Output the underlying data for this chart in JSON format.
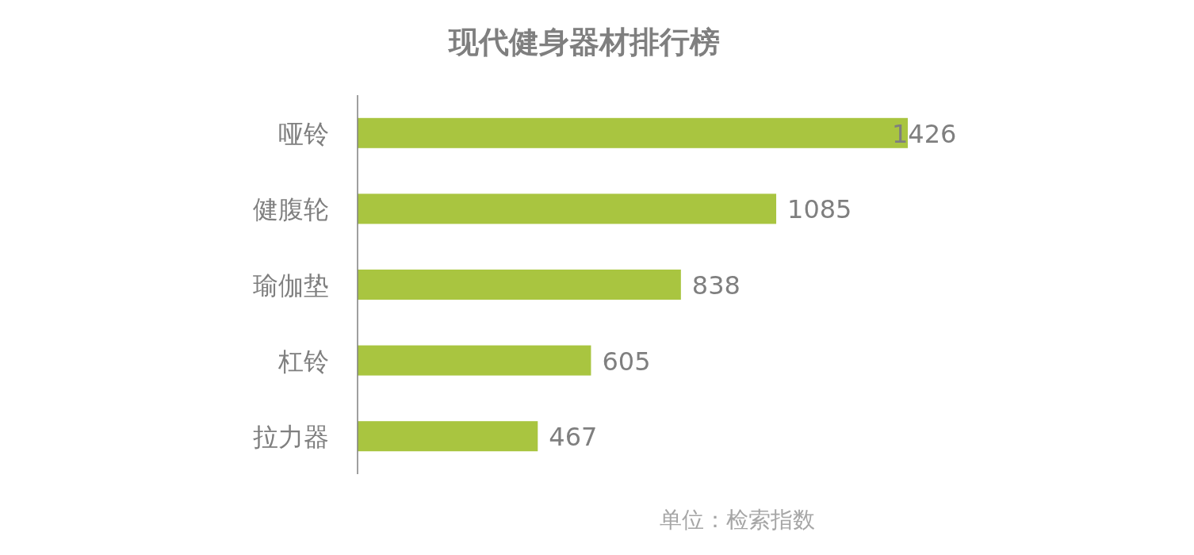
{
  "chart_data": {
    "type": "bar",
    "orientation": "horizontal",
    "title": "现代健身器材排行榜",
    "categories": [
      "哑铃",
      "健腹轮",
      "瑜伽垫",
      "杠铃",
      "拉力器"
    ],
    "values": [
      1426,
      1085,
      838,
      605,
      467
    ],
    "color": "#a9c540",
    "data_labels": true,
    "annotations": [
      "单位：检索指数"
    ]
  }
}
